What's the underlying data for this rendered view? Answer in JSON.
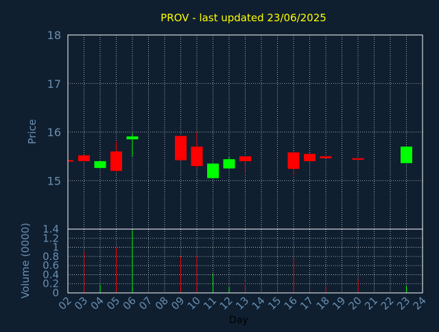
{
  "chart_data": {
    "type": "candlestick",
    "title": "PROV - last updated 23/06/2025",
    "price_panel": {
      "ylabel": "Price",
      "ylim": [
        14.0,
        18.0
      ],
      "yticks": [
        "15",
        "16",
        "17",
        "18"
      ],
      "grid": true
    },
    "volume_panel": {
      "ylabel": "Volume (0000)",
      "ylim": [
        0,
        1.4
      ],
      "yticks": [
        "0",
        "0.2",
        "0.4",
        "0.6",
        "0.8",
        "1",
        "1.2",
        "1.4"
      ],
      "grid": true
    },
    "xlabel": "Day",
    "xticks": [
      "02",
      "03",
      "04",
      "05",
      "06",
      "07",
      "08",
      "09",
      "10",
      "11",
      "12",
      "13",
      "14",
      "15",
      "16",
      "17",
      "18",
      "19",
      "20",
      "21",
      "22",
      "23",
      "24"
    ],
    "colors": {
      "up": "#00ff00",
      "down": "#ff0000",
      "title": "#ffff00",
      "axis_text": "#6a8fb0",
      "frame": "#ffffff",
      "background": "#0f1f30"
    },
    "candles": [
      {
        "day": 2,
        "open": 15.42,
        "close": 15.41,
        "high": 15.42,
        "low": 15.41,
        "volume": 0.0
      },
      {
        "day": 3,
        "open": 15.52,
        "close": 15.4,
        "high": 15.52,
        "low": 15.4,
        "volume": 0.9
      },
      {
        "day": 4,
        "open": 15.26,
        "close": 15.4,
        "high": 15.4,
        "low": 15.26,
        "volume": 0.18
      },
      {
        "day": 5,
        "open": 15.6,
        "close": 15.2,
        "high": 15.8,
        "low": 15.18,
        "volume": 1.0
      },
      {
        "day": 6,
        "open": 15.85,
        "close": 15.91,
        "high": 15.98,
        "low": 15.5,
        "volume": 1.38
      },
      {
        "day": 9,
        "open": 15.92,
        "close": 15.42,
        "high": 15.92,
        "low": 15.42,
        "volume": 0.8
      },
      {
        "day": 10,
        "open": 15.7,
        "close": 15.3,
        "high": 16.0,
        "low": 15.26,
        "volume": 0.82
      },
      {
        "day": 11,
        "open": 15.05,
        "close": 15.35,
        "high": 15.35,
        "low": 15.05,
        "volume": 0.42
      },
      {
        "day": 12,
        "open": 15.25,
        "close": 15.44,
        "high": 15.5,
        "low": 15.25,
        "volume": 0.14
      },
      {
        "day": 13,
        "open": 15.5,
        "close": 15.4,
        "high": 15.5,
        "low": 15.14,
        "volume": 0.24
      },
      {
        "day": 16,
        "open": 15.58,
        "close": 15.24,
        "high": 15.6,
        "low": 15.1,
        "volume": 0.75
      },
      {
        "day": 17,
        "open": 15.55,
        "close": 15.4,
        "high": 15.55,
        "low": 15.38,
        "volume": 0.15
      },
      {
        "day": 18,
        "open": 15.5,
        "close": 15.46,
        "high": 15.5,
        "low": 15.46,
        "volume": 0.15
      },
      {
        "day": 20,
        "open": 15.46,
        "close": 15.43,
        "high": 15.46,
        "low": 15.43,
        "volume": 0.3
      },
      {
        "day": 23,
        "open": 15.36,
        "close": 15.7,
        "high": 15.7,
        "low": 15.36,
        "volume": 0.15
      }
    ]
  }
}
